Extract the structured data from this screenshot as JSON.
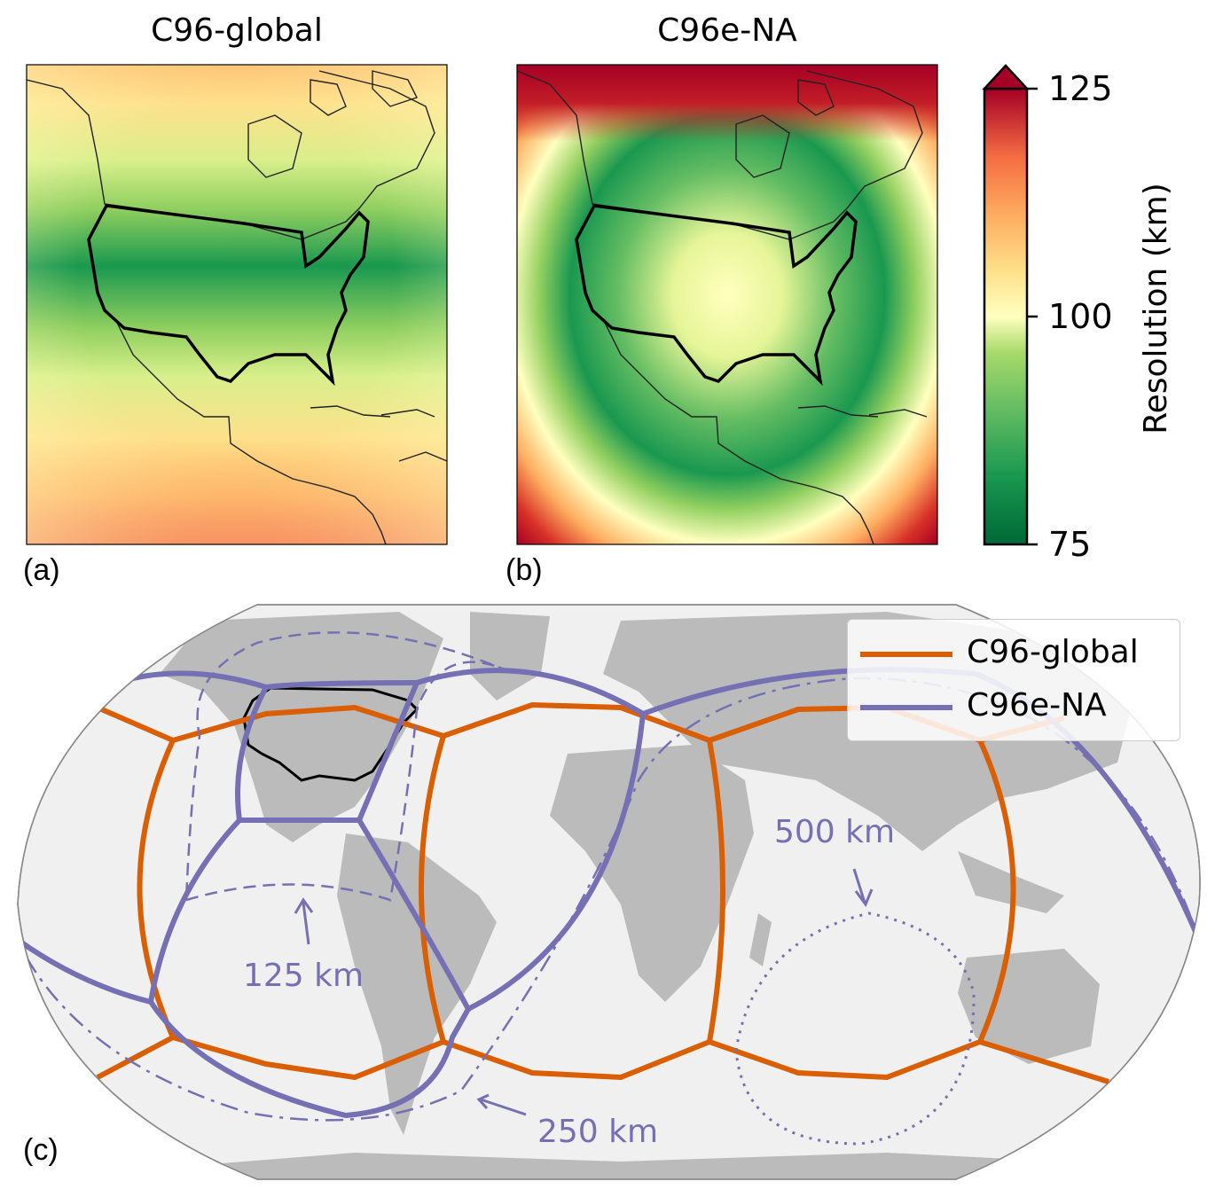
{
  "chart_data": [
    {
      "type": "heatmap",
      "panel": "(a)",
      "title": "C96-global",
      "field": "resolution_km",
      "description_range": [
        88,
        120
      ]
    },
    {
      "type": "heatmap",
      "panel": "(b)",
      "title": "C96e-NA",
      "field": "resolution_km",
      "description_range": [
        78,
        125
      ]
    },
    {
      "type": "line",
      "panel": "(c)",
      "series": [
        {
          "name": "C96-global",
          "color": "#d95f02"
        },
        {
          "name": "C96e-NA",
          "color": "#7570b3"
        }
      ],
      "annotations": [
        "125 km",
        "250 km",
        "500 km"
      ]
    }
  ],
  "colorbar": {
    "label": "Resolution (km)",
    "ticks": [
      "125",
      "100",
      "75"
    ],
    "range": [
      75,
      125
    ],
    "colormap": "RdYlGn_r",
    "extend": "max"
  },
  "colors": {
    "global": "#d95f02",
    "na": "#7570b3",
    "land": "#bbbbbb",
    "ocean": "#f0f0f0"
  }
}
